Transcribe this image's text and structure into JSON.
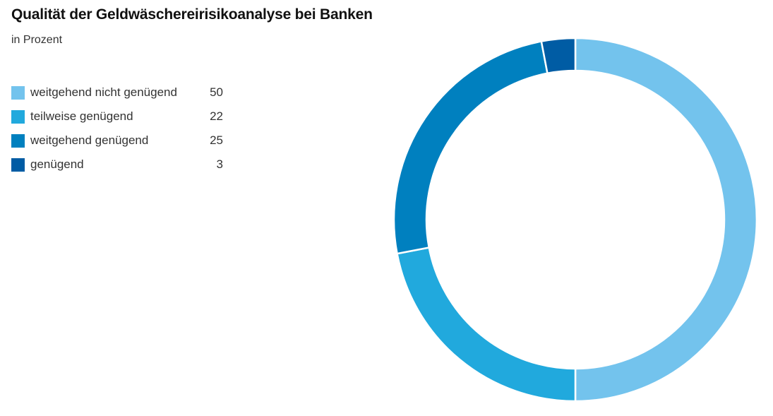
{
  "title": "Qualität der Geldwäschereirisikoanalyse bei Banken",
  "subtitle": "in Prozent",
  "legend": [
    {
      "label": "weitgehend nicht genügend",
      "value": "50",
      "color": "#73c3ed"
    },
    {
      "label": "teilweise genügend",
      "value": "22",
      "color": "#21a9dd"
    },
    {
      "label": "weitgehend genügend",
      "value": "25",
      "color": "#0080bf"
    },
    {
      "label": "genügend",
      "value": "3",
      "color": "#005ca4"
    }
  ],
  "chart_data": {
    "type": "pie",
    "variant": "donut",
    "title": "Qualität der Geldwäschereirisikoanalyse bei Banken",
    "subtitle": "in Prozent",
    "categories": [
      "weitgehend nicht genügend",
      "teilweise genügend",
      "weitgehend genügend",
      "genügend"
    ],
    "values": [
      50,
      22,
      25,
      3
    ],
    "colors": [
      "#73c3ed",
      "#21a9dd",
      "#0080bf",
      "#005ca4"
    ],
    "unit": "%",
    "legend_position": "left",
    "start_angle_deg": 0,
    "direction": "clockwise"
  }
}
